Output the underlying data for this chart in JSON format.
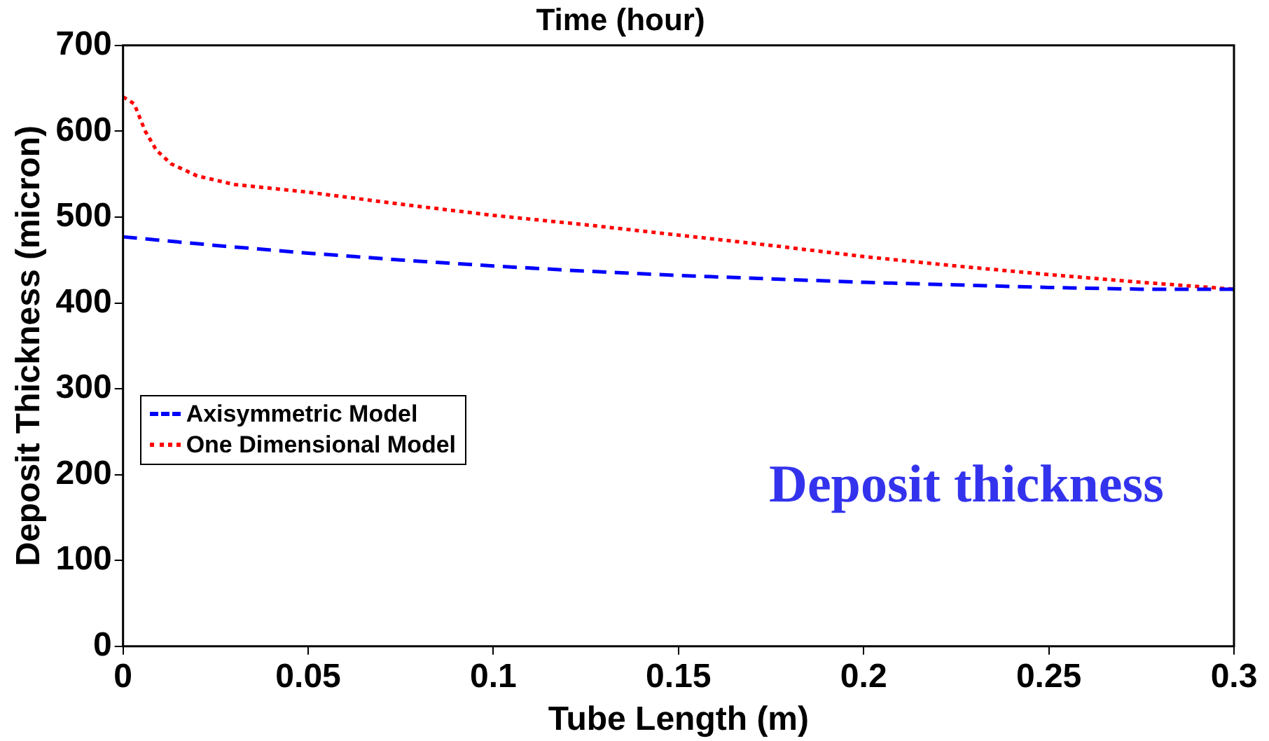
{
  "chart_data": {
    "type": "line",
    "title": "Time (hour)",
    "xlabel": "Tube Length (m)",
    "ylabel": "Deposit Thickness (micron)",
    "xlim": [
      0,
      0.3
    ],
    "xticks": [
      0,
      0.05,
      0.1,
      0.15,
      0.2,
      0.25,
      0.3
    ],
    "ylim": [
      0,
      700
    ],
    "yticks": [
      0,
      100,
      200,
      300,
      400,
      500,
      600,
      700
    ],
    "grid": false,
    "legend": "left",
    "marker": "none",
    "annotations": [
      "Deposit thickness"
    ],
    "series": [
      {
        "name": "Axisymmetric Model",
        "color": "#0000ff",
        "line_style": "dashed",
        "x": [
          0,
          0.025,
          0.05,
          0.075,
          0.1,
          0.125,
          0.15,
          0.175,
          0.2,
          0.225,
          0.25,
          0.275,
          0.3
        ],
        "values": [
          477,
          467,
          458,
          450,
          443,
          437,
          432,
          428,
          424,
          421,
          418,
          416,
          416
        ]
      },
      {
        "name": "One Dimensional Model",
        "color": "#ff0000",
        "line_style": "dotted",
        "x": [
          0,
          0.003,
          0.006,
          0.009,
          0.013,
          0.02,
          0.03,
          0.05,
          0.075,
          0.1,
          0.125,
          0.15,
          0.175,
          0.2,
          0.225,
          0.25,
          0.275,
          0.3
        ],
        "values": [
          640,
          632,
          600,
          578,
          562,
          548,
          538,
          529,
          515,
          502,
          491,
          479,
          467,
          454,
          443,
          433,
          424,
          416
        ]
      }
    ]
  }
}
